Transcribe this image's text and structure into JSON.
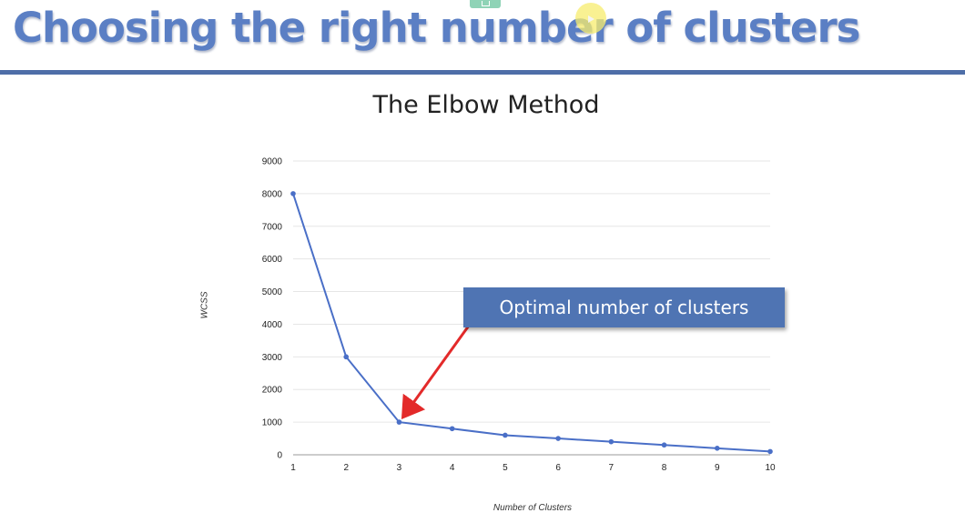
{
  "slide": {
    "title": "Choosing the right number of clusters"
  },
  "callout": {
    "text": "Optimal number of clusters"
  },
  "colors": {
    "title": "#5b7fc4",
    "rule": "#4e6ea8",
    "line": "#4a6fc7",
    "arrow": "#e32a2a",
    "callout": "#4f74b3"
  },
  "chart_data": {
    "type": "line",
    "title": "The Elbow Method",
    "xlabel": "Number of Clusters",
    "ylabel": "WCSS",
    "x": [
      1,
      2,
      3,
      4,
      5,
      6,
      7,
      8,
      9,
      10
    ],
    "y": [
      8000,
      3000,
      1000,
      800,
      600,
      500,
      400,
      300,
      200,
      100
    ],
    "xlim": [
      1,
      10
    ],
    "ylim": [
      0,
      9000
    ],
    "yticks": [
      0,
      1000,
      2000,
      3000,
      4000,
      5000,
      6000,
      7000,
      8000,
      9000
    ],
    "xticks": [
      1,
      2,
      3,
      4,
      5,
      6,
      7,
      8,
      9,
      10
    ],
    "grid": true,
    "annotation": {
      "text": "Optimal number of clusters",
      "points_to_x": 3
    }
  }
}
